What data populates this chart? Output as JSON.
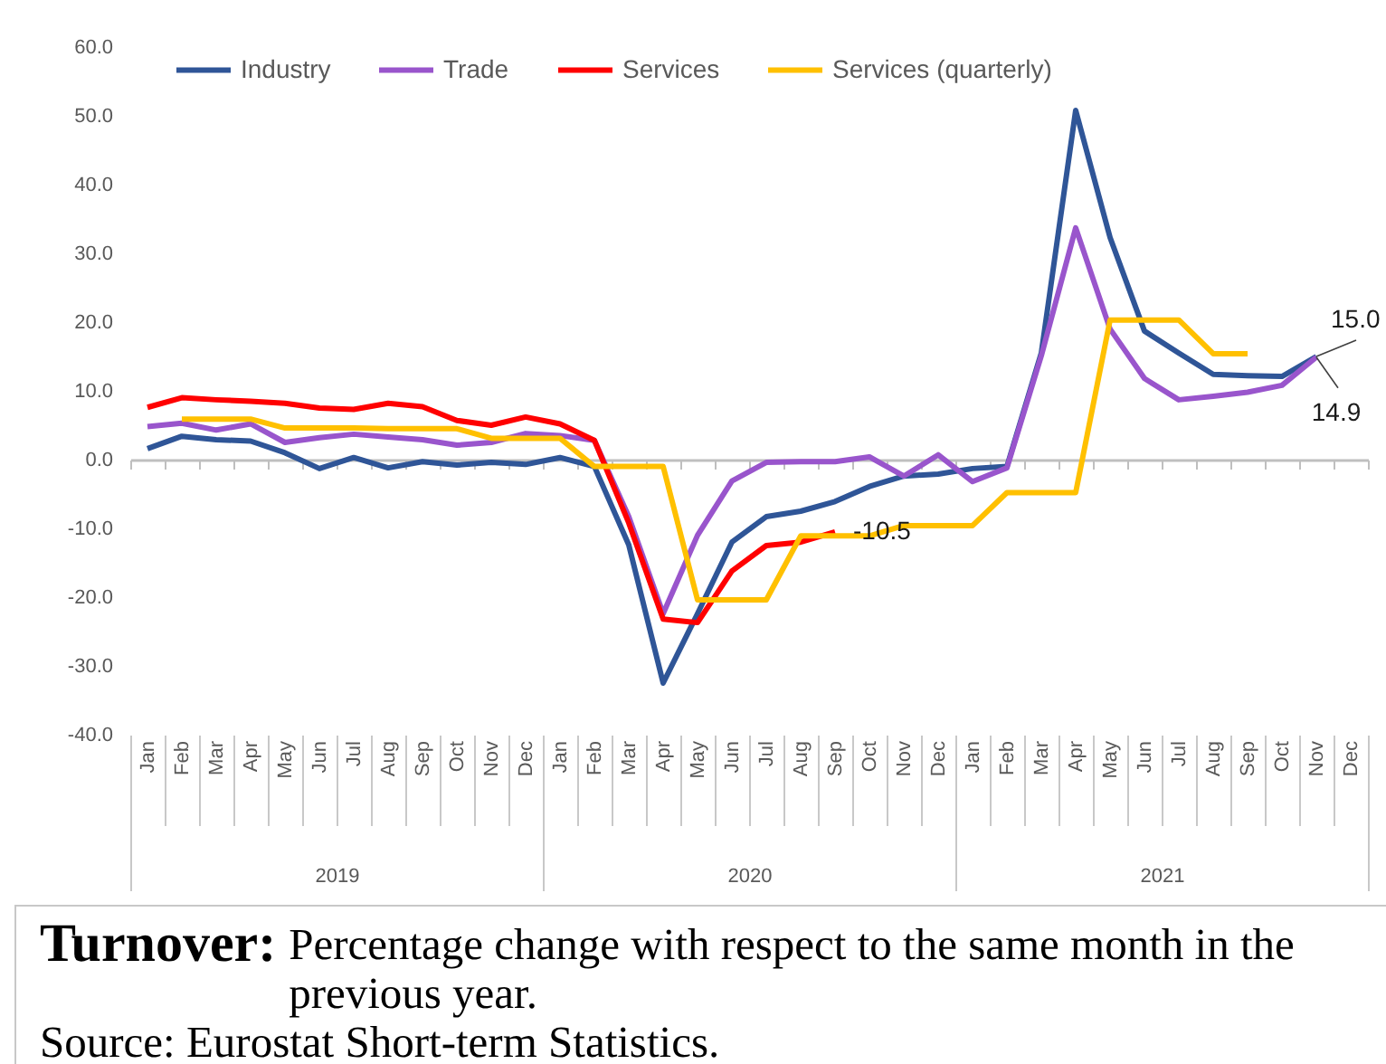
{
  "chart_data": {
    "type": "line",
    "title": "Turnover:",
    "subtitle": "Percentage change with respect to the same month in the previous year.",
    "annotations": [
      "Source: Eurostat Short-term Statistics."
    ],
    "categories": [
      "Jan",
      "Feb",
      "Mar",
      "Apr",
      "May",
      "Jun",
      "Jul",
      "Aug",
      "Sep",
      "Oct",
      "Nov",
      "Dec",
      "Jan",
      "Feb",
      "Mar",
      "Apr",
      "May",
      "Jun",
      "Jul",
      "Aug",
      "Sep",
      "Oct",
      "Nov",
      "Dec",
      "Jan",
      "Feb",
      "Mar",
      "Apr",
      "May",
      "Jun",
      "Jul",
      "Aug",
      "Sep",
      "Oct",
      "Nov",
      "Dec"
    ],
    "x2lim": [
      2019,
      2022
    ],
    "x2ticks": [
      {
        "value": 2019,
        "label": null
      },
      {
        "value": 2019.5,
        "label": "2019"
      },
      {
        "value": 2020,
        "label": null
      },
      {
        "value": 2020.5,
        "label": "2020"
      },
      {
        "value": 2021,
        "label": null
      },
      {
        "value": 2021.5,
        "label": "2021"
      },
      {
        "value": 2022,
        "label": null
      }
    ],
    "ylim": [
      -40,
      60
    ],
    "yticks": [
      {
        "value": -40,
        "label": "-40.0"
      },
      {
        "value": -30,
        "label": "-30.0"
      },
      {
        "value": -20,
        "label": "-20.0"
      },
      {
        "value": -10,
        "label": "-10.0"
      },
      {
        "value": 0,
        "label": "0.0"
      },
      {
        "value": 10,
        "label": "10.0"
      },
      {
        "value": 20,
        "label": "20.0"
      },
      {
        "value": 30,
        "label": "30.0"
      },
      {
        "value": 40,
        "label": "40.0"
      },
      {
        "value": 50,
        "label": "50.0"
      },
      {
        "value": 60,
        "label": "60.0"
      }
    ],
    "legend": "top",
    "series": [
      {
        "name": "Industry",
        "color": "#2f5597",
        "values": [
          1.6,
          3.4,
          2.9,
          2.7,
          1.0,
          -1.3,
          0.3,
          -1.2,
          -0.3,
          -0.8,
          -0.4,
          -0.7,
          0.3,
          -1.0,
          -12.4,
          -32.5,
          -22.4,
          -12.0,
          -8.3,
          -7.5,
          -6.1,
          -3.9,
          -2.4,
          -2.1,
          -1.3,
          -1.0,
          15.5,
          50.8,
          32.3,
          18.7,
          15.5,
          12.4,
          12.2,
          12.1,
          15.0,
          null
        ],
        "value_labels": [
          null,
          null,
          null,
          null,
          null,
          null,
          null,
          null,
          null,
          null,
          null,
          null,
          null,
          null,
          null,
          null,
          null,
          null,
          null,
          null,
          null,
          null,
          null,
          null,
          null,
          null,
          null,
          null,
          null,
          null,
          null,
          null,
          null,
          null,
          "15.0",
          null
        ]
      },
      {
        "name": "Trade",
        "color": "#9955cc",
        "values": [
          4.8,
          5.3,
          4.3,
          5.2,
          2.5,
          3.2,
          3.7,
          3.3,
          2.9,
          2.1,
          2.5,
          3.8,
          3.5,
          2.8,
          -8.3,
          -22.4,
          -11.0,
          -3.1,
          -0.4,
          -0.3,
          -0.3,
          0.4,
          -2.4,
          0.7,
          -3.2,
          -1.2,
          15.1,
          33.7,
          19.0,
          11.8,
          8.7,
          9.2,
          9.8,
          10.8,
          14.9,
          null
        ],
        "value_labels": [
          null,
          null,
          null,
          null,
          null,
          null,
          null,
          null,
          null,
          null,
          null,
          null,
          null,
          null,
          null,
          null,
          null,
          null,
          null,
          null,
          null,
          null,
          null,
          null,
          null,
          null,
          null,
          null,
          null,
          null,
          null,
          null,
          null,
          null,
          "14.9",
          null
        ]
      },
      {
        "name": "Services",
        "color": "#ff0000",
        "values": [
          7.6,
          9.0,
          8.7,
          8.5,
          8.2,
          7.5,
          7.3,
          8.2,
          7.7,
          5.7,
          5.0,
          6.2,
          5.2,
          2.8,
          -9.2,
          -23.2,
          -23.7,
          -16.2,
          -12.5,
          -12.0,
          -10.5,
          null,
          null,
          null,
          null,
          null,
          null,
          null,
          null,
          null,
          null,
          null,
          null,
          null,
          null,
          null
        ],
        "value_labels": [
          null,
          null,
          null,
          null,
          null,
          null,
          null,
          null,
          null,
          null,
          null,
          null,
          null,
          null,
          null,
          null,
          null,
          null,
          null,
          null,
          "-10.5",
          null,
          null,
          null,
          null,
          null,
          null,
          null,
          null,
          null,
          null,
          null,
          null,
          null,
          null,
          null
        ]
      },
      {
        "name": "Services (quarterly)",
        "color": "#ffc000",
        "values": [
          null,
          5.9,
          5.9,
          5.9,
          4.6,
          4.6,
          4.6,
          4.5,
          4.5,
          4.5,
          3.1,
          3.1,
          3.1,
          -1.0,
          -1.0,
          -1.0,
          -20.4,
          -20.4,
          -20.4,
          -11.1,
          -11.1,
          -11.1,
          -9.6,
          -9.6,
          -9.6,
          -4.8,
          -4.8,
          -4.8,
          20.3,
          20.3,
          20.3,
          15.4,
          15.4,
          null,
          null,
          null
        ]
      }
    ]
  }
}
